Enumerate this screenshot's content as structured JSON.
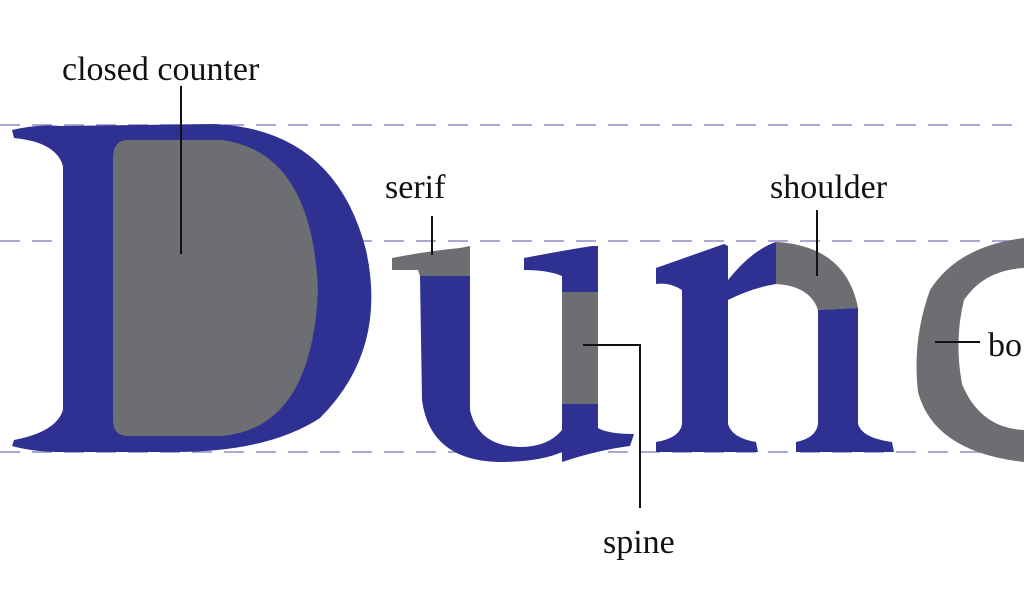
{
  "title_word": "Dunc",
  "colors": {
    "letter": "#2e3192",
    "highlight": "#6d6e71",
    "guide": "#8f8cc9",
    "leader": "#111111",
    "label": "#111111"
  },
  "labels": {
    "closed_counter": "closed counter",
    "serif": "serif",
    "shoulder": "shoulder",
    "spine": "spine",
    "bowl": "bo"
  }
}
